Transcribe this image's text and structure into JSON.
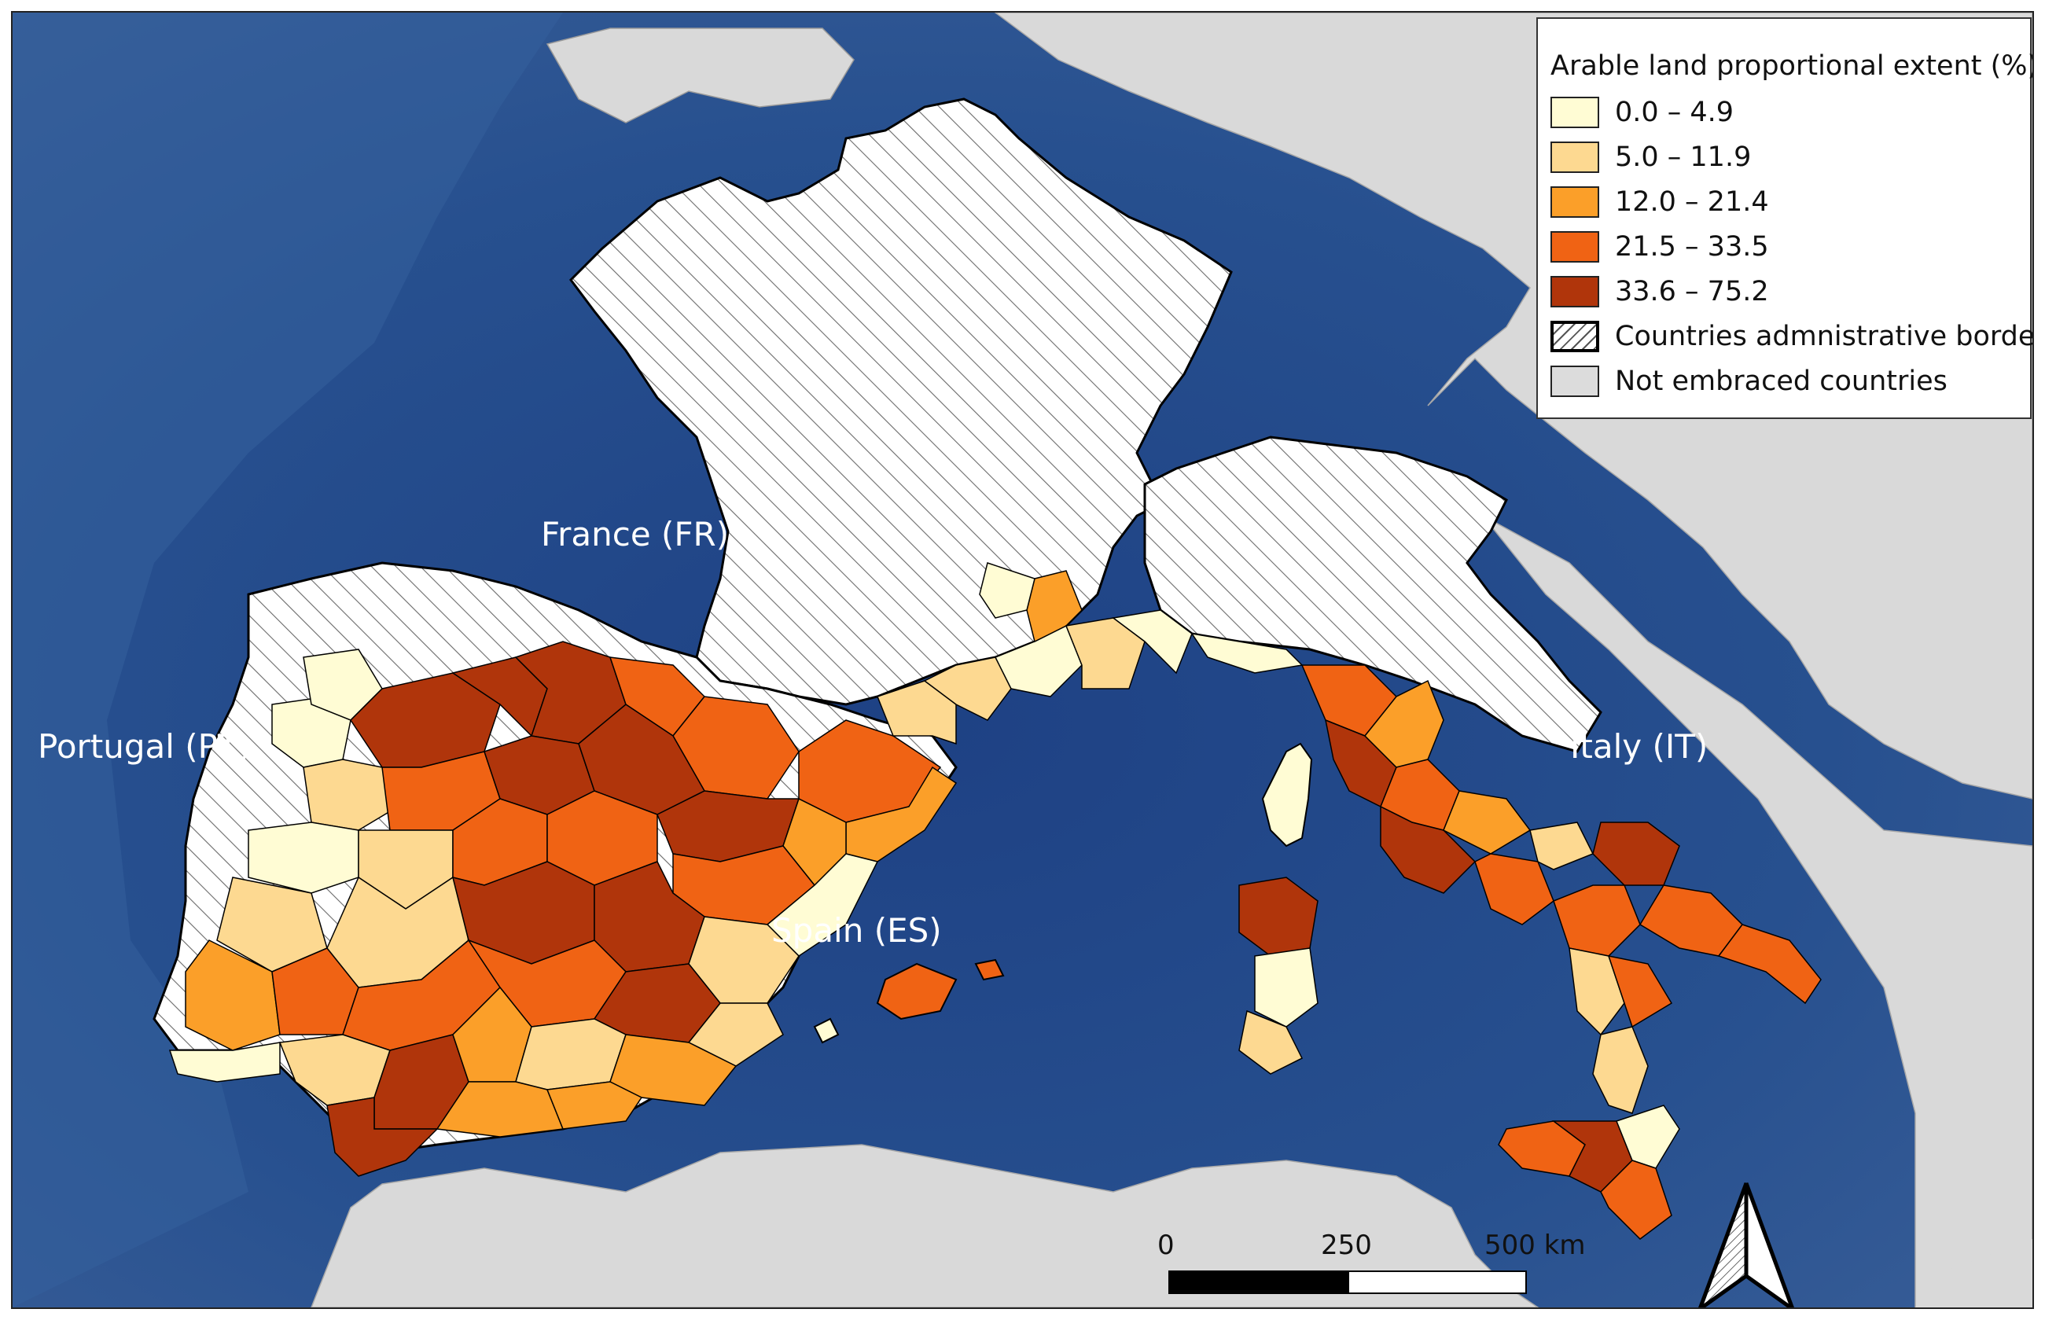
{
  "map": {
    "country_labels": {
      "france": "France (FR)",
      "portugal": "Portugal (PT)",
      "spain": "Spain (ES)",
      "italy": "Italy (IT)"
    }
  },
  "legend": {
    "title": "Arable land proportional extent (%)",
    "classes": [
      {
        "label": "0.0 – 4.9",
        "color": "#fffcd4"
      },
      {
        "label": "5.0 – 11.9",
        "color": "#fdd991"
      },
      {
        "label": "12.0 – 21.4",
        "color": "#fb9f29"
      },
      {
        "label": "21.5 – 33.5",
        "color": "#f06314"
      },
      {
        "label": "33.6 – 75.2",
        "color": "#b0350b"
      }
    ],
    "borders_label": "Countries admnistrative borders",
    "not_embraced_label": "Not embraced countries",
    "not_embraced_color": "#dcdcdc"
  },
  "scale_bar": {
    "label_0": "0",
    "label_250": "250",
    "label_500": "500 km"
  },
  "colors": {
    "sea": "#2a4f8e",
    "sea_deep": "#1d3e78",
    "land_grey": "#d9d9d9",
    "border": "#000000"
  }
}
